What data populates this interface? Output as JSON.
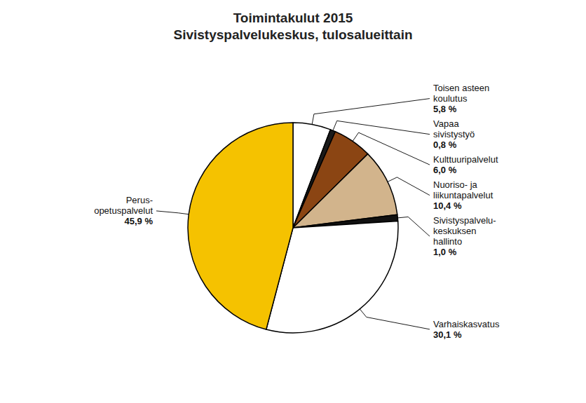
{
  "chart_data": {
    "type": "pie",
    "title": "Toimintakulut 2015\nSivistyspalvelukeskus, tulosalueittain",
    "categories": [
      "Toisen asteen\nkoulutus",
      "Vapaa\nsivistystyö",
      "Kulttuuripalvelut",
      "Nuoriso- ja\nliikuntapalvelut",
      "Sivistyspalvelu-\nkeskuksen\nhallinto",
      "Varhaiskasvatus",
      "Perus-\nopetuspalvelut"
    ],
    "values": [
      5.8,
      0.8,
      6.0,
      10.4,
      1.0,
      30.1,
      45.9
    ],
    "value_labels": [
      "5,8 %",
      "0,8 %",
      "6,0 %",
      "10,4 %",
      "1,0 %",
      "30,1 %",
      "45,9 %"
    ],
    "colors": [
      "#FFFFFF",
      "#1a1a1a",
      "#8B4513",
      "#D2B48C",
      "#111111",
      "#FFFFFF",
      "#F5C200"
    ],
    "data_labels": true
  }
}
